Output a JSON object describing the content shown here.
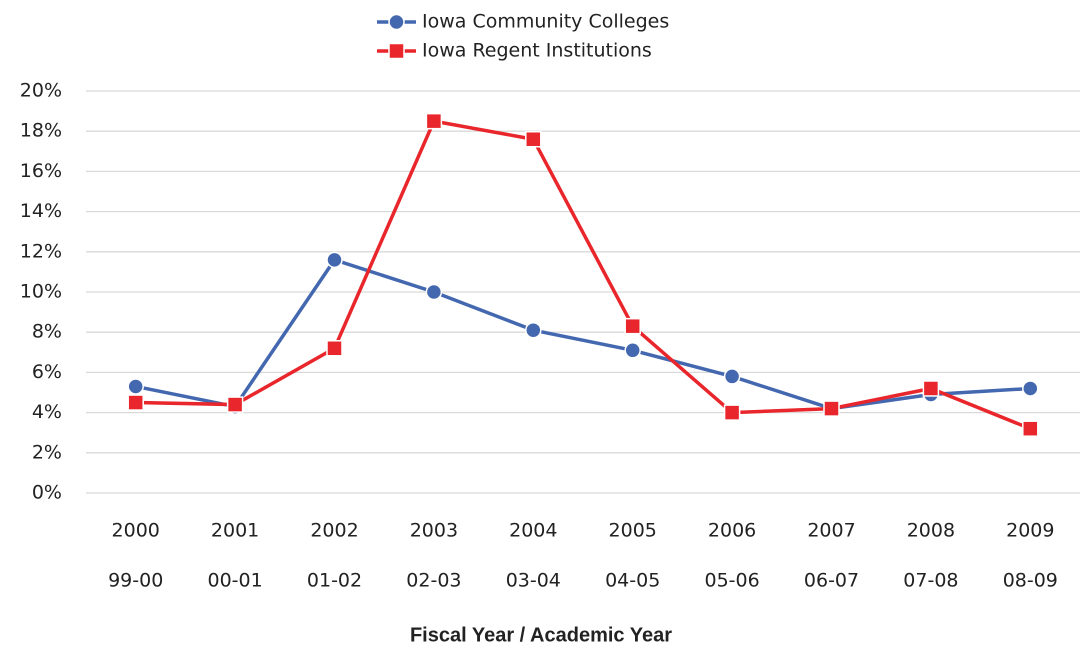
{
  "chart_data": {
    "type": "line",
    "x_title": "Fiscal Year / Academic Year",
    "categories": [
      "2000",
      "2001",
      "2002",
      "2003",
      "2004",
      "2005",
      "2006",
      "2007",
      "2008",
      "2009"
    ],
    "secondary_categories": [
      "99-00",
      "00-01",
      "01-02",
      "02-03",
      "03-04",
      "04-05",
      "05-06",
      "06-07",
      "07-08",
      "08-09"
    ],
    "series": [
      {
        "name": "Iowa Community Colleges",
        "color": "#4468b0",
        "marker": "circle",
        "values": [
          5.3,
          4.3,
          11.6,
          10.0,
          8.1,
          7.1,
          5.8,
          4.2,
          4.9,
          5.2
        ]
      },
      {
        "name": "Iowa Regent Institutions",
        "color": "#e8262b",
        "marker": "square",
        "values": [
          4.5,
          4.4,
          7.2,
          18.5,
          17.6,
          8.3,
          4.0,
          4.2,
          5.2,
          3.2
        ]
      }
    ],
    "ylim": [
      0,
      20
    ],
    "yticks": [
      {
        "value": 0,
        "label": "0%"
      },
      {
        "value": 2,
        "label": "2%"
      },
      {
        "value": 4,
        "label": "4%"
      },
      {
        "value": 6,
        "label": "6%"
      },
      {
        "value": 8,
        "label": "8%"
      },
      {
        "value": 10,
        "label": "10%"
      },
      {
        "value": 12,
        "label": "12%"
      },
      {
        "value": 14,
        "label": "14%"
      },
      {
        "value": 16,
        "label": "16%"
      },
      {
        "value": 18,
        "label": "18%"
      },
      {
        "value": 20,
        "label": "20%"
      }
    ],
    "grid": true,
    "legend": "top"
  }
}
